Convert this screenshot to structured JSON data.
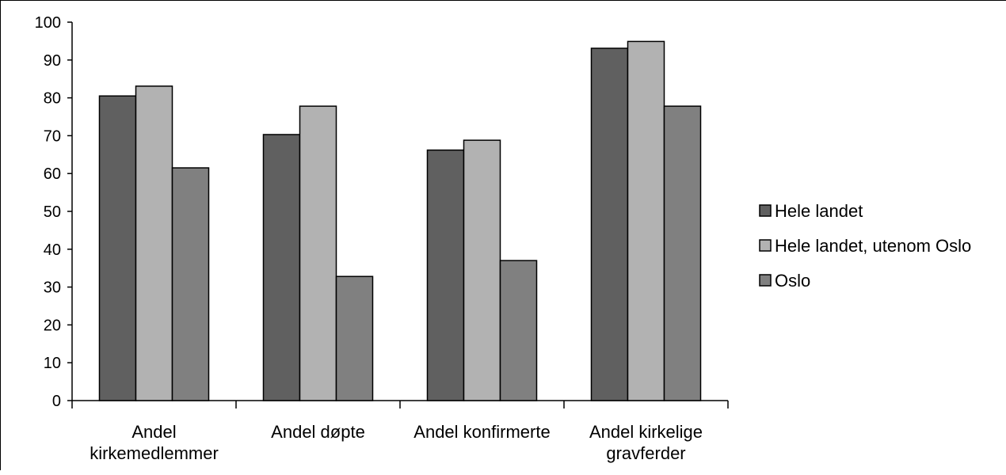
{
  "chart_data": {
    "type": "bar",
    "title": "",
    "xlabel": "",
    "ylabel": "",
    "ylim": [
      0,
      100
    ],
    "yticks": [
      0,
      10,
      20,
      30,
      40,
      50,
      60,
      70,
      80,
      90,
      100
    ],
    "grid": false,
    "legend_position": "right",
    "categories": [
      [
        "Andel",
        "kirkemedlemmer"
      ],
      [
        "Andel døpte"
      ],
      [
        "Andel konfirmerte"
      ],
      [
        "Andel kirkelige",
        "gravferder"
      ]
    ],
    "series": [
      {
        "name": "Hele landet",
        "color": "#606060",
        "values": [
          80.5,
          70.3,
          66.2,
          93.1
        ]
      },
      {
        "name": "Hele landet, utenom Oslo",
        "color": "#b2b2b2",
        "values": [
          83.1,
          77.8,
          68.8,
          94.9
        ]
      },
      {
        "name": "Oslo",
        "color": "#808080",
        "values": [
          61.5,
          32.8,
          37.0,
          77.8
        ]
      }
    ]
  }
}
